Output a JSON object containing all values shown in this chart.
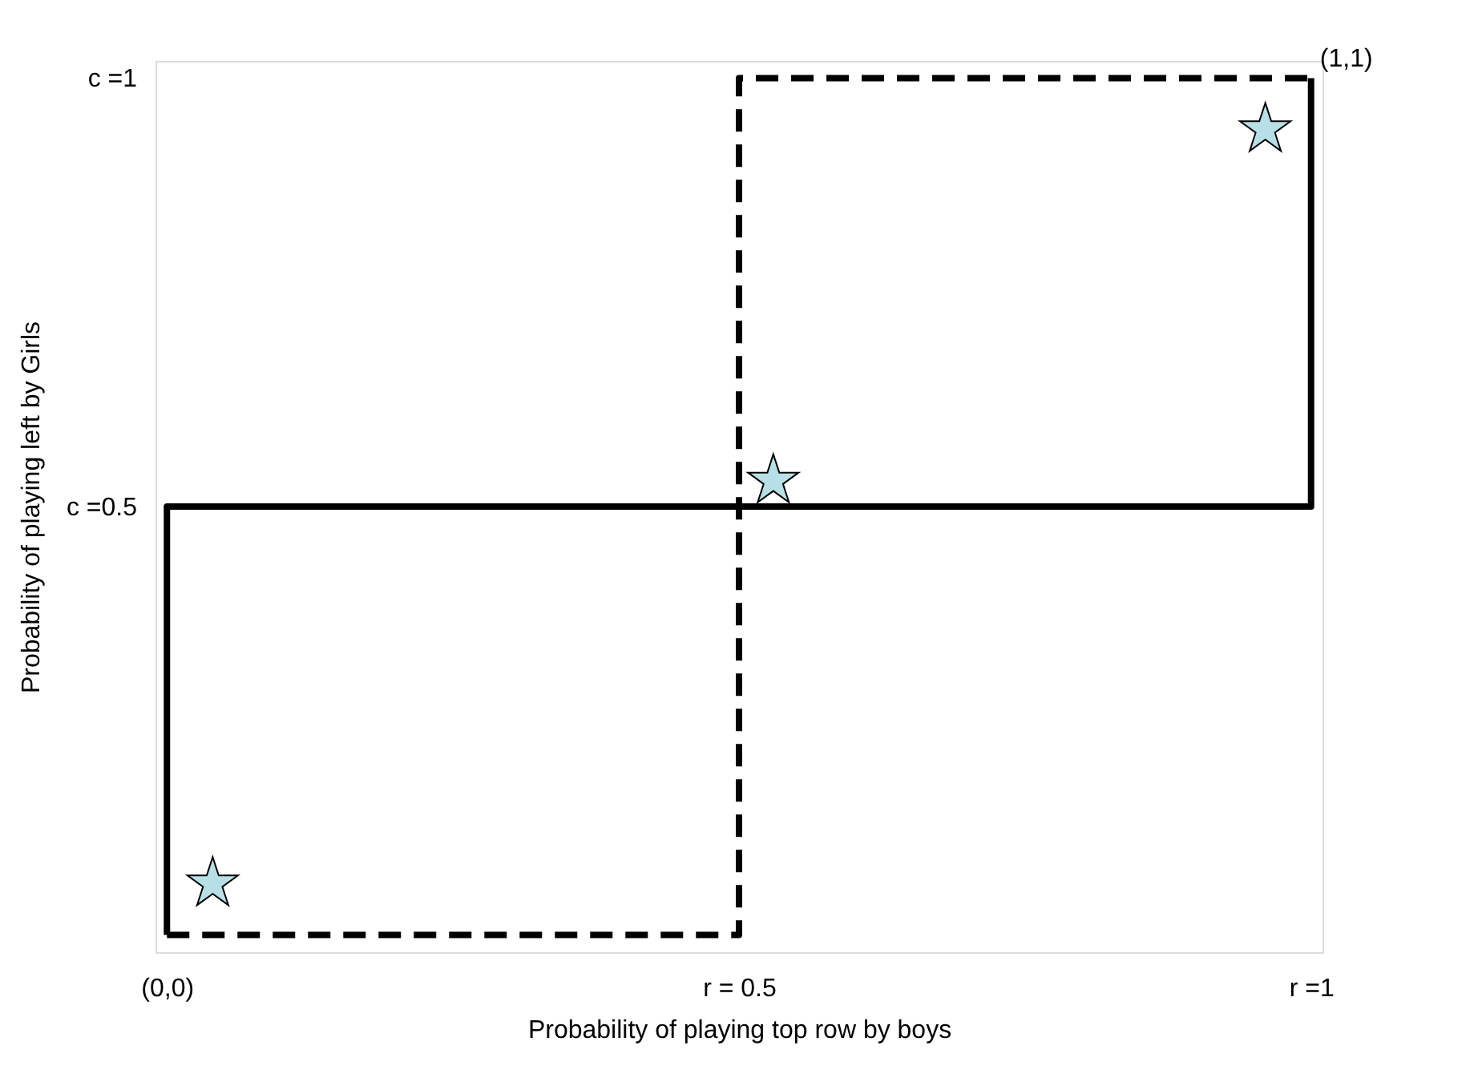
{
  "chart_data": {
    "type": "line",
    "xlabel": "Probability of playing top row by boys",
    "ylabel": "Probability of playing left by Girls",
    "xlim": [
      -0.01,
      1.01
    ],
    "ylim": [
      -0.02,
      1.02
    ],
    "xticks": [
      {
        "value": 0,
        "label": "(0,0)"
      },
      {
        "value": 0.5,
        "label": "r = 0.5"
      },
      {
        "value": 1,
        "label": "r =1"
      }
    ],
    "yticks": [
      {
        "value": 0.5,
        "label": "c =0.5"
      },
      {
        "value": 1,
        "label": "c =1"
      }
    ],
    "series": [
      {
        "color": "#000000",
        "line_style": "dashed",
        "x": [
          0,
          0.5,
          0.5,
          1
        ],
        "values": [
          0,
          0,
          1,
          1
        ]
      },
      {
        "color": "#000000",
        "line_style": "solid",
        "x": [
          0,
          0,
          1,
          1
        ],
        "values": [
          0,
          0.5,
          0.5,
          1
        ]
      },
      {
        "type": "scatter",
        "marker": "star",
        "color": "#b7e0e6",
        "x": [
          0.04,
          0.53,
          0.96
        ],
        "values": [
          0.06,
          0.53,
          0.94
        ]
      }
    ],
    "annotations": [
      {
        "text": "(1,1)",
        "x": 1,
        "y": 1
      }
    ]
  }
}
